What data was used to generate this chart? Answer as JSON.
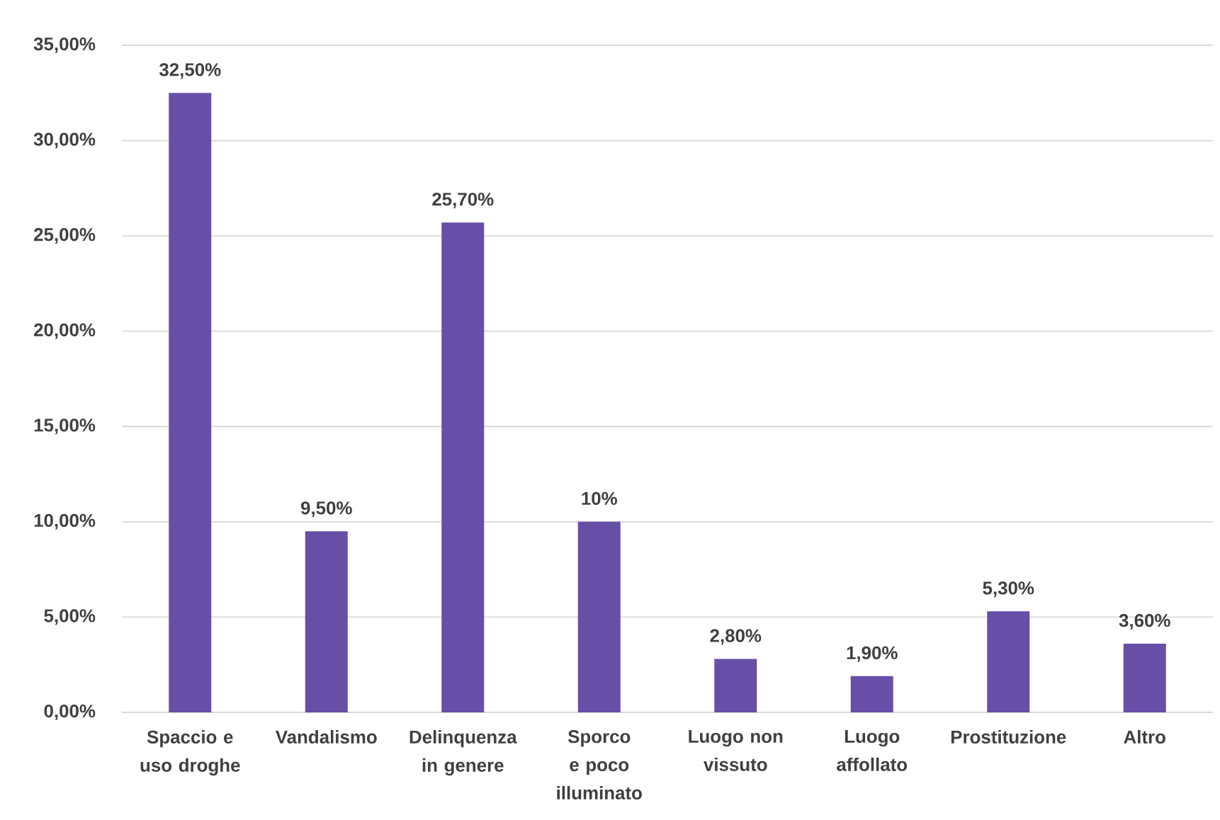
{
  "chart_data": {
    "type": "bar",
    "categories": [
      "Spaccio e uso droghe",
      "Vandalismo",
      "Delinquenza in genere",
      "Sporco e poco illuminato",
      "Luogo non vissuto",
      "Luogo affollato",
      "Prostituzione",
      "Altro"
    ],
    "values": [
      32.5,
      9.5,
      25.7,
      10,
      2.8,
      1.9,
      5.3,
      3.6
    ],
    "color": "#674ea7",
    "value_labels": [
      "32,50%",
      "9,50%",
      "25,70%",
      "10%",
      "2,80%",
      "1,90%",
      "5,30%",
      "3,60%"
    ],
    "ylim": [
      0,
      35
    ],
    "yticks": [
      {
        "value": 0,
        "label": "0,00%"
      },
      {
        "value": 5,
        "label": "5,00%"
      },
      {
        "value": 10,
        "label": "10,00%"
      },
      {
        "value": 15,
        "label": "15,00%"
      },
      {
        "value": 20,
        "label": "20,00%"
      },
      {
        "value": 25,
        "label": "25,00%"
      },
      {
        "value": 30,
        "label": "30,00%"
      },
      {
        "value": 35,
        "label": "35,00%"
      }
    ],
    "grid": "y"
  }
}
